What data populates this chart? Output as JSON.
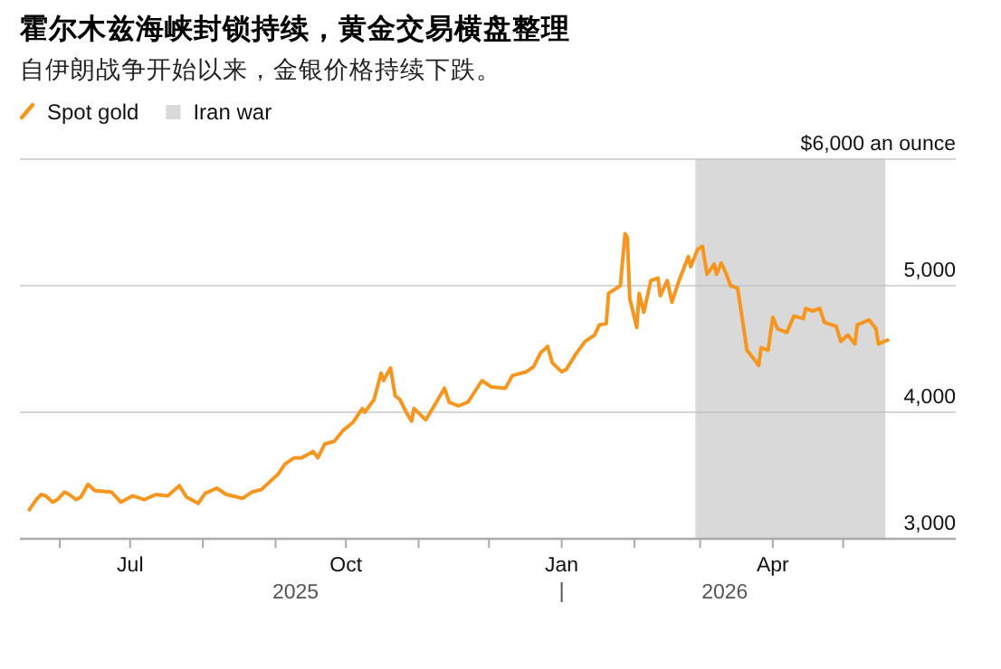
{
  "chart_data": {
    "type": "line",
    "title": "霍尔木兹海峡封锁持续，黄金交易横盘整理",
    "subtitle": "自伊朗战争开始以来，金银价格持续下跌。",
    "x": [
      "2025-05-19",
      "2025-05-22",
      "2025-05-24",
      "2025-05-26",
      "2025-05-29",
      "2025-05-31",
      "2025-06-03",
      "2025-06-05",
      "2025-06-08",
      "2025-06-10",
      "2025-06-13",
      "2025-06-16",
      "2025-06-23",
      "2025-06-27",
      "2025-07-02",
      "2025-07-07",
      "2025-07-12",
      "2025-07-17",
      "2025-07-22",
      "2025-07-25",
      "2025-07-30",
      "2025-08-02",
      "2025-08-07",
      "2025-08-11",
      "2025-08-18",
      "2025-08-22",
      "2025-08-26",
      "2025-09-02",
      "2025-09-05",
      "2025-09-09",
      "2025-09-12",
      "2025-09-17",
      "2025-09-19",
      "2025-09-22",
      "2025-09-26",
      "2025-09-30",
      "2025-10-04",
      "2025-10-08",
      "2025-10-09",
      "2025-10-13",
      "2025-10-16",
      "2025-10-17",
      "2025-10-20",
      "2025-10-22",
      "2025-10-24",
      "2025-10-27",
      "2025-10-29",
      "2025-10-30",
      "2025-11-04",
      "2025-11-07",
      "2025-11-12",
      "2025-11-14",
      "2025-11-18",
      "2025-11-22",
      "2025-11-28",
      "2025-12-02",
      "2025-12-08",
      "2025-12-11",
      "2025-12-17",
      "2025-12-20",
      "2025-12-23",
      "2025-12-26",
      "2025-12-28",
      "2026-01-01",
      "2026-01-03",
      "2026-01-07",
      "2026-01-11",
      "2026-01-15",
      "2026-01-17",
      "2026-01-20",
      "2026-01-21",
      "2026-01-26",
      "2026-01-28",
      "2026-01-29",
      "2026-01-30",
      "2026-02-02",
      "2026-02-03",
      "2026-02-05",
      "2026-02-08",
      "2026-02-11",
      "2026-02-12",
      "2026-02-15",
      "2026-02-17",
      "2026-02-20",
      "2026-02-24",
      "2026-02-25",
      "2026-02-28",
      "2026-03-02",
      "2026-03-04",
      "2026-03-07",
      "2026-03-08",
      "2026-03-10",
      "2026-03-12",
      "2026-03-14",
      "2026-03-17",
      "2026-03-21",
      "2026-03-24",
      "2026-03-26",
      "2026-03-27",
      "2026-03-30",
      "2026-04-01",
      "2026-04-03",
      "2026-04-07",
      "2026-04-10",
      "2026-04-14",
      "2026-04-15",
      "2026-04-18",
      "2026-04-21",
      "2026-04-23",
      "2026-04-28",
      "2026-04-30",
      "2026-05-03",
      "2026-05-06",
      "2026-05-07",
      "2026-05-12",
      "2026-05-15",
      "2026-05-16",
      "2026-05-20"
    ],
    "series": [
      {
        "name": "Spot gold",
        "color": "#f7961e",
        "values": [
          3230,
          3310,
          3350,
          3340,
          3290,
          3310,
          3370,
          3350,
          3310,
          3330,
          3430,
          3380,
          3370,
          3290,
          3340,
          3310,
          3350,
          3340,
          3420,
          3330,
          3280,
          3360,
          3400,
          3350,
          3320,
          3370,
          3390,
          3510,
          3590,
          3640,
          3640,
          3690,
          3640,
          3750,
          3770,
          3860,
          3920,
          4030,
          4000,
          4100,
          4310,
          4250,
          4350,
          4130,
          4100,
          3990,
          3930,
          4030,
          3940,
          4030,
          4190,
          4080,
          4050,
          4080,
          4250,
          4200,
          4190,
          4290,
          4320,
          4360,
          4470,
          4520,
          4390,
          4320,
          4340,
          4460,
          4560,
          4610,
          4690,
          4700,
          4940,
          5000,
          5410,
          5380,
          4900,
          4670,
          4940,
          4790,
          5040,
          5060,
          4920,
          5040,
          4870,
          5040,
          5230,
          5150,
          5290,
          5310,
          5090,
          5170,
          5090,
          5180,
          5100,
          5000,
          4980,
          4490,
          4420,
          4370,
          4510,
          4490,
          4750,
          4660,
          4630,
          4760,
          4740,
          4820,
          4800,
          4820,
          4710,
          4680,
          4560,
          4610,
          4540,
          4690,
          4730,
          4660,
          4540,
          4570
        ]
      }
    ],
    "xlim": [
      "2025-05-15",
      "2026-06-18"
    ],
    "xticks": [
      {
        "value": "2025-06-01",
        "label": null
      },
      {
        "value": "2025-07-01",
        "label": "Jul"
      },
      {
        "value": "2025-08-01",
        "label": null
      },
      {
        "value": "2025-09-01",
        "label": null
      },
      {
        "value": "2025-10-01",
        "label": "Oct"
      },
      {
        "value": "2025-11-01",
        "label": null
      },
      {
        "value": "2025-12-01",
        "label": null
      },
      {
        "value": "2026-01-01",
        "label": "Jan"
      },
      {
        "value": "2026-02-01",
        "label": null
      },
      {
        "value": "2026-03-01",
        "label": null
      },
      {
        "value": "2026-04-01",
        "label": "Apr"
      },
      {
        "value": "2026-05-01",
        "label": null
      }
    ],
    "ylim": [
      3000,
      6000
    ],
    "yticks": [
      {
        "value": 3000,
        "label": "3,000"
      },
      {
        "value": 4000,
        "label": "4,000"
      },
      {
        "value": 5000,
        "label": "5,000"
      },
      {
        "value": 6000,
        "label": "$6,000 an ounce"
      }
    ],
    "bands": [
      {
        "axis": "x",
        "from": "2026-02-27",
        "to": "2026-05-19",
        "label": "Iran war",
        "color": "#d9d9d9"
      }
    ],
    "annotations": [
      "2025",
      "2026"
    ],
    "grid": "y",
    "legend": "top left"
  }
}
